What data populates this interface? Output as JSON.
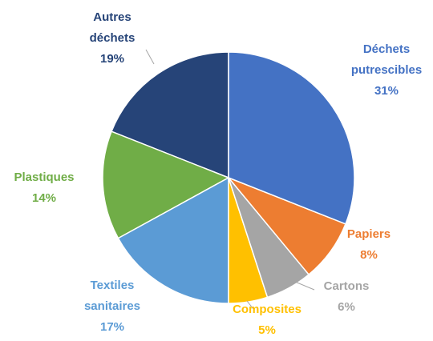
{
  "chart_data": {
    "type": "pie",
    "categories": [
      "Déchets putrescibles",
      "Papiers",
      "Cartons",
      "Composites",
      "Textiles sanitaires",
      "Plastiques",
      "Autres déchets"
    ],
    "values": [
      31,
      8,
      6,
      5,
      17,
      14,
      19
    ],
    "value_labels": [
      "31%",
      "8%",
      "6%",
      "5%",
      "17%",
      "14%",
      "19%"
    ],
    "colors": [
      "#4472c4",
      "#ed7d31",
      "#a5a5a5",
      "#ffc000",
      "#5b9bd5",
      "#70ad47",
      "#264478"
    ]
  }
}
